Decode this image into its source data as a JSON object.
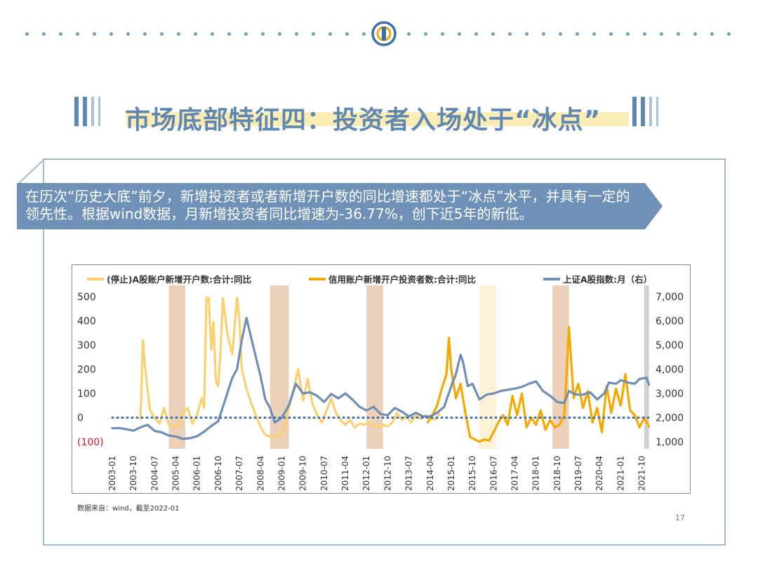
{
  "header": {
    "title": "市场底部特征四：投资者入场处于“冰点”"
  },
  "banner": {
    "text": "在历次“历史大底”前夕，新增投资者或者新增开户数的同比增速都处于“冰点”水平，并具有一定的领先性。根据wind数据，月新增投资者同比增速为-36.77%，创下近5年的新低。"
  },
  "source": "数据来自：wind，截至2022-01",
  "page_number": "17",
  "colors": {
    "accent": "#5f87b1",
    "series_light": "#fcd06f",
    "series_orange": "#f5a800",
    "series_index": "#6e8eb4",
    "shade": "#e8c9ad",
    "shade_light": "#fbeed0",
    "shade_grey": "#c8c8c8",
    "zero_line": "#3f6ea5"
  },
  "chart_data": {
    "type": "line",
    "legend": [
      "(停止)A股账户新增开户数:合计:同比",
      "信用账户新增开户投资者数:合计:同比",
      "上证A股指数:月（右）"
    ],
    "ylim_left": [
      -100,
      500
    ],
    "ylim_right": [
      1000,
      7000
    ],
    "left_ticks": [
      "500",
      "400",
      "300",
      "200",
      "100",
      "0",
      "(100)"
    ],
    "right_ticks": [
      "7,000",
      "6,000",
      "5,000",
      "4,000",
      "3,000",
      "2,000",
      "1,000"
    ],
    "x_ticks": [
      "2003-01",
      "2003-10",
      "2004-07",
      "2005-04",
      "2006-01",
      "2006-10",
      "2007-07",
      "2008-04",
      "2009-01",
      "2009-10",
      "2010-07",
      "2011-04",
      "2012-01",
      "2012-10",
      "2013-07",
      "2014-04",
      "2015-01",
      "2015-10",
      "2016-07",
      "2017-04",
      "2018-01",
      "2018-10",
      "2019-07",
      "2020-04",
      "2021-01",
      "2021-10"
    ],
    "shaded_periods": [
      {
        "start": "2005-01",
        "end": "2005-08",
        "tone": "shade"
      },
      {
        "start": "2008-08",
        "end": "2009-04",
        "tone": "shade"
      },
      {
        "start": "2012-01",
        "end": "2012-08",
        "tone": "shade"
      },
      {
        "start": "2016-01",
        "end": "2016-08",
        "tone": "shade_light"
      },
      {
        "start": "2018-08",
        "end": "2019-03",
        "tone": "shade"
      },
      {
        "start": "2021-11",
        "end": "2022-01",
        "tone": "shade_grey"
      }
    ],
    "series": [
      {
        "name": "(停止)A股账户新增开户数:合计:同比",
        "color_key": "series_light",
        "points": [
          [
            "2004-01",
            -5
          ],
          [
            "2004-02",
            320
          ],
          [
            "2004-03",
            200
          ],
          [
            "2004-05",
            30
          ],
          [
            "2004-07",
            0
          ],
          [
            "2004-09",
            -25
          ],
          [
            "2004-11",
            40
          ],
          [
            "2005-01",
            -30
          ],
          [
            "2005-03",
            -40
          ],
          [
            "2005-05",
            -35
          ],
          [
            "2005-07",
            20
          ],
          [
            "2005-09",
            40
          ],
          [
            "2005-11",
            -25
          ],
          [
            "2006-01",
            10
          ],
          [
            "2006-03",
            80
          ],
          [
            "2006-04",
            40
          ],
          [
            "2006-05",
            495
          ],
          [
            "2006-06",
            495
          ],
          [
            "2006-07",
            280
          ],
          [
            "2006-08",
            395
          ],
          [
            "2006-09",
            150
          ],
          [
            "2006-10",
            130
          ],
          [
            "2006-11",
            280
          ],
          [
            "2006-12",
            495
          ],
          [
            "2007-02",
            340
          ],
          [
            "2007-04",
            260
          ],
          [
            "2007-06",
            495
          ],
          [
            "2007-07",
            410
          ],
          [
            "2007-08",
            200
          ],
          [
            "2007-10",
            120
          ],
          [
            "2007-12",
            60
          ],
          [
            "2008-02",
            10
          ],
          [
            "2008-04",
            -40
          ],
          [
            "2008-06",
            -70
          ],
          [
            "2008-08",
            -80
          ],
          [
            "2008-10",
            -75
          ],
          [
            "2008-12",
            -80
          ],
          [
            "2009-02",
            -40
          ],
          [
            "2009-04",
            40
          ],
          [
            "2009-06",
            120
          ],
          [
            "2009-08",
            200
          ],
          [
            "2009-10",
            70
          ],
          [
            "2009-12",
            160
          ],
          [
            "2010-02",
            60
          ],
          [
            "2010-04",
            10
          ],
          [
            "2010-06",
            -20
          ],
          [
            "2010-08",
            30
          ],
          [
            "2010-10",
            80
          ],
          [
            "2010-12",
            20
          ],
          [
            "2011-02",
            -10
          ],
          [
            "2011-04",
            -30
          ],
          [
            "2011-06",
            -10
          ],
          [
            "2011-08",
            -40
          ],
          [
            "2011-10",
            -25
          ],
          [
            "2011-12",
            -30
          ],
          [
            "2012-02",
            -20
          ],
          [
            "2012-04",
            -35
          ],
          [
            "2012-06",
            -40
          ],
          [
            "2012-08",
            -30
          ],
          [
            "2012-10",
            -35
          ],
          [
            "2012-12",
            -20
          ],
          [
            "2013-02",
            20
          ],
          [
            "2013-04",
            -10
          ],
          [
            "2013-06",
            5
          ],
          [
            "2013-08",
            -20
          ],
          [
            "2013-10",
            10
          ],
          [
            "2013-12",
            -5
          ],
          [
            "2014-02",
            10
          ],
          [
            "2014-04",
            0
          ],
          [
            "2014-06",
            -10
          ],
          [
            "2014-08",
            15
          ]
        ]
      },
      {
        "name": "信用账户新增开户投资者数:合计:同比",
        "color_key": "series_orange",
        "points": [
          [
            "2014-03",
            -20
          ],
          [
            "2014-05",
            10
          ],
          [
            "2014-07",
            50
          ],
          [
            "2014-09",
            120
          ],
          [
            "2014-11",
            180
          ],
          [
            "2014-12",
            330
          ],
          [
            "2015-01",
            200
          ],
          [
            "2015-03",
            80
          ],
          [
            "2015-05",
            140
          ],
          [
            "2015-07",
            20
          ],
          [
            "2015-09",
            -80
          ],
          [
            "2015-11",
            -90
          ],
          [
            "2016-01",
            -100
          ],
          [
            "2016-03",
            -90
          ],
          [
            "2016-05",
            -95
          ],
          [
            "2016-07",
            -60
          ],
          [
            "2016-09",
            -20
          ],
          [
            "2016-11",
            10
          ],
          [
            "2017-01",
            -30
          ],
          [
            "2017-03",
            90
          ],
          [
            "2017-05",
            10
          ],
          [
            "2017-07",
            100
          ],
          [
            "2017-09",
            -40
          ],
          [
            "2017-11",
            0
          ],
          [
            "2018-01",
            -30
          ],
          [
            "2018-03",
            30
          ],
          [
            "2018-05",
            -50
          ],
          [
            "2018-07",
            -10
          ],
          [
            "2018-09",
            -40
          ],
          [
            "2018-11",
            -30
          ],
          [
            "2019-01",
            10
          ],
          [
            "2019-02",
            180
          ],
          [
            "2019-03",
            375
          ],
          [
            "2019-05",
            80
          ],
          [
            "2019-07",
            140
          ],
          [
            "2019-09",
            40
          ],
          [
            "2019-11",
            110
          ],
          [
            "2020-01",
            -20
          ],
          [
            "2020-03",
            40
          ],
          [
            "2020-05",
            -60
          ],
          [
            "2020-07",
            130
          ],
          [
            "2020-09",
            20
          ],
          [
            "2020-11",
            120
          ],
          [
            "2021-01",
            50
          ],
          [
            "2021-03",
            180
          ],
          [
            "2021-05",
            30
          ],
          [
            "2021-07",
            10
          ],
          [
            "2021-09",
            -40
          ],
          [
            "2021-11",
            0
          ],
          [
            "2022-01",
            -37
          ]
        ]
      },
      {
        "name": "上证A股指数:月（右）",
        "color_key": "series_index",
        "points": [
          [
            "2003-01",
            1560
          ],
          [
            "2003-04",
            1570
          ],
          [
            "2003-07",
            1520
          ],
          [
            "2003-10",
            1460
          ],
          [
            "2004-01",
            1600
          ],
          [
            "2004-04",
            1700
          ],
          [
            "2004-07",
            1450
          ],
          [
            "2004-10",
            1390
          ],
          [
            "2005-01",
            1260
          ],
          [
            "2005-04",
            1220
          ],
          [
            "2005-07",
            1120
          ],
          [
            "2005-10",
            1150
          ],
          [
            "2006-01",
            1230
          ],
          [
            "2006-04",
            1420
          ],
          [
            "2006-07",
            1650
          ],
          [
            "2006-10",
            1850
          ],
          [
            "2007-01",
            2750
          ],
          [
            "2007-04",
            3650
          ],
          [
            "2007-06",
            4000
          ],
          [
            "2007-08",
            5200
          ],
          [
            "2007-10",
            6120
          ],
          [
            "2007-12",
            5300
          ],
          [
            "2008-02",
            4500
          ],
          [
            "2008-04",
            3700
          ],
          [
            "2008-06",
            2750
          ],
          [
            "2008-08",
            2400
          ],
          [
            "2008-10",
            1800
          ],
          [
            "2009-01",
            2000
          ],
          [
            "2009-04",
            2500
          ],
          [
            "2009-07",
            3400
          ],
          [
            "2009-10",
            3000
          ],
          [
            "2010-01",
            3050
          ],
          [
            "2010-04",
            2900
          ],
          [
            "2010-07",
            2650
          ],
          [
            "2010-10",
            2980
          ],
          [
            "2011-01",
            2800
          ],
          [
            "2011-04",
            3000
          ],
          [
            "2011-07",
            2750
          ],
          [
            "2011-10",
            2450
          ],
          [
            "2012-01",
            2300
          ],
          [
            "2012-04",
            2450
          ],
          [
            "2012-07",
            2150
          ],
          [
            "2012-10",
            2100
          ],
          [
            "2013-01",
            2400
          ],
          [
            "2013-04",
            2250
          ],
          [
            "2013-07",
            2050
          ],
          [
            "2013-10",
            2200
          ],
          [
            "2014-01",
            2050
          ],
          [
            "2014-04",
            2050
          ],
          [
            "2014-07",
            2200
          ],
          [
            "2014-10",
            2450
          ],
          [
            "2015-01",
            3300
          ],
          [
            "2015-03",
            3800
          ],
          [
            "2015-05",
            4600
          ],
          [
            "2015-06",
            4300
          ],
          [
            "2015-08",
            3300
          ],
          [
            "2015-10",
            3400
          ],
          [
            "2016-01",
            2750
          ],
          [
            "2016-04",
            2950
          ],
          [
            "2016-07",
            3000
          ],
          [
            "2016-10",
            3100
          ],
          [
            "2017-01",
            3150
          ],
          [
            "2017-04",
            3200
          ],
          [
            "2017-07",
            3270
          ],
          [
            "2017-10",
            3400
          ],
          [
            "2018-01",
            3500
          ],
          [
            "2018-04",
            3100
          ],
          [
            "2018-07",
            2900
          ],
          [
            "2018-10",
            2650
          ],
          [
            "2019-01",
            2600
          ],
          [
            "2019-03",
            3100
          ],
          [
            "2019-06",
            2950
          ],
          [
            "2019-09",
            2950
          ],
          [
            "2019-12",
            3050
          ],
          [
            "2020-03",
            2750
          ],
          [
            "2020-06",
            3000
          ],
          [
            "2020-08",
            3450
          ],
          [
            "2020-11",
            3400
          ],
          [
            "2021-01",
            3550
          ],
          [
            "2021-04",
            3450
          ],
          [
            "2021-07",
            3400
          ],
          [
            "2021-09",
            3600
          ],
          [
            "2021-12",
            3650
          ],
          [
            "2022-01",
            3360
          ]
        ]
      }
    ],
    "zero_line": 0
  }
}
